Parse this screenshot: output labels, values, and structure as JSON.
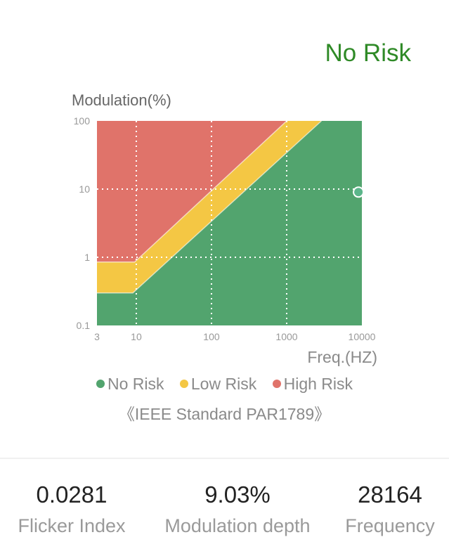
{
  "status": {
    "label": "No Risk",
    "color": "#2f8a27"
  },
  "chart_data": {
    "type": "area",
    "ylabel": "Modulation(%)",
    "xlabel": "Freq.(HZ)",
    "xscale": "log",
    "yscale": "log",
    "xlim": [
      3,
      10000
    ],
    "ylim": [
      0.1,
      100
    ],
    "xticks": [
      3,
      10,
      100,
      1000,
      10000
    ],
    "xtick_labels": [
      "3",
      "10",
      "100",
      "1000",
      "10000"
    ],
    "yticks": [
      0.1,
      1,
      10,
      100
    ],
    "ytick_labels": [
      "0.1",
      "1",
      "10",
      "100"
    ],
    "grid": true,
    "regions": [
      {
        "name": "No Risk",
        "color": "#52a46e"
      },
      {
        "name": "Low Risk",
        "color": "#f4c744"
      },
      {
        "name": "High Risk",
        "color": "#e0736a"
      }
    ],
    "boundaries": {
      "no_low": [
        [
          3,
          0.3
        ],
        [
          9,
          0.3
        ],
        [
          2900,
          100
        ]
      ],
      "low_high": [
        [
          3,
          0.85
        ],
        [
          9.5,
          0.85
        ],
        [
          1000,
          100
        ]
      ]
    },
    "point": {
      "frequency": 28164,
      "modulation": 9.03,
      "color": "#5bb58a"
    },
    "legend": [
      "No Risk",
      "Low Risk",
      "High Risk"
    ],
    "legend_position": "bottom",
    "source": "《IEEE Standard PAR1789》"
  },
  "stats": [
    {
      "value": "0.0281",
      "label": "Flicker Index"
    },
    {
      "value": "9.03%",
      "label": "Modulation depth"
    },
    {
      "value": "28164",
      "label": "Frequency"
    }
  ]
}
